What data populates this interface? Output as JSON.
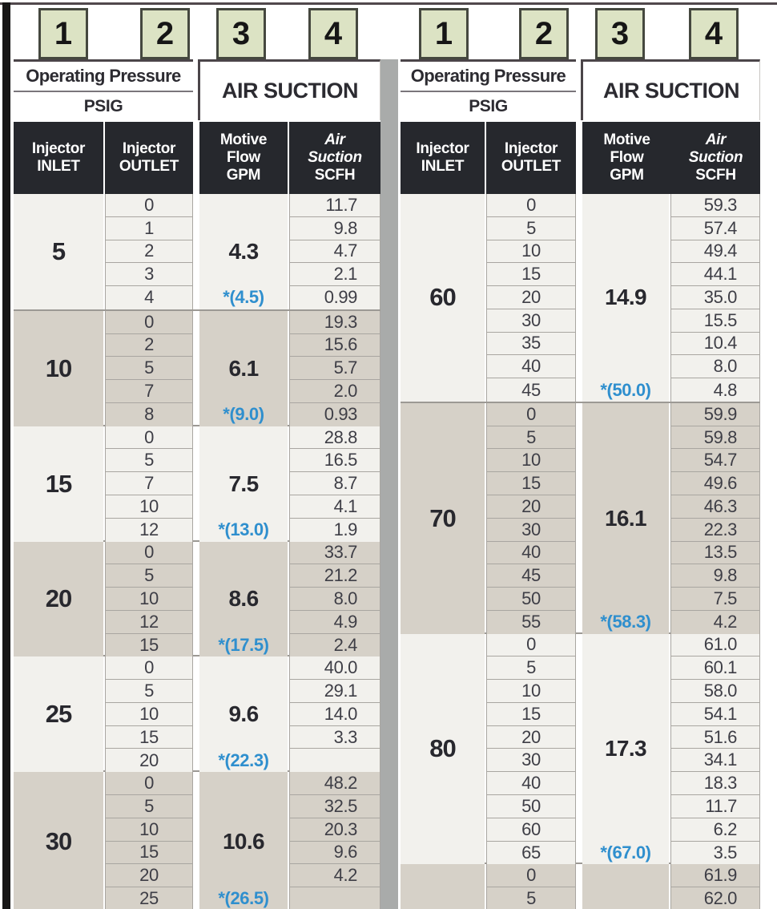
{
  "colors": {
    "badge_bg": "#dce3c4",
    "badge_border": "#45483f",
    "header_dark_bg": "#26282d",
    "header_dark_text": "#ffffff",
    "row_light_bg": "#f2f1ed",
    "row_dark_bg": "#d6d1c8",
    "max_flow_blue": "#2f8fce",
    "cell_line": "#a9a6a1",
    "group_line": "#9c9994",
    "table_divider": "#a9abaa",
    "sidebar_black": "#181717",
    "top_line": "#51484c",
    "rule_dark": "#4b4549",
    "heading_text": "#2c2b31",
    "number_text": "#3e3e46"
  },
  "tables": [
    {
      "id": "left",
      "column_labels": [
        "1",
        "2",
        "3",
        "4"
      ],
      "header": {
        "operating_pressure": "Operating Pressure",
        "psig": "PSIG",
        "air_suction": "AIR SUCTION",
        "inlet": [
          "Injector",
          "INLET"
        ],
        "outlet": [
          "Injector",
          "OUTLET"
        ],
        "motive_flow": [
          "Motive",
          "Flow",
          "GPM"
        ],
        "air_suction_col": [
          "Air",
          "Suction",
          "SCFH"
        ]
      },
      "groups": [
        {
          "inlet": "5",
          "shade": "light",
          "flow": "4.3",
          "flow_max": "*(4.5)",
          "rows": [
            [
              "0",
              "11.7"
            ],
            [
              "1",
              "9.8"
            ],
            [
              "2",
              "4.7"
            ],
            [
              "3",
              "2.1"
            ],
            [
              "4",
              "0.99"
            ]
          ]
        },
        {
          "inlet": "10",
          "shade": "dark",
          "flow": "6.1",
          "flow_max": "*(9.0)",
          "rows": [
            [
              "0",
              "19.3"
            ],
            [
              "2",
              "15.6"
            ],
            [
              "5",
              "5.7"
            ],
            [
              "7",
              "2.0"
            ],
            [
              "8",
              "0.93"
            ]
          ]
        },
        {
          "inlet": "15",
          "shade": "light",
          "flow": "7.5",
          "flow_max": "*(13.0)",
          "rows": [
            [
              "0",
              "28.8"
            ],
            [
              "5",
              "16.5"
            ],
            [
              "7",
              "8.7"
            ],
            [
              "10",
              "4.1"
            ],
            [
              "12",
              "1.9"
            ]
          ]
        },
        {
          "inlet": "20",
          "shade": "dark",
          "flow": "8.6",
          "flow_max": "*(17.5)",
          "rows": [
            [
              "0",
              "33.7"
            ],
            [
              "5",
              "21.2"
            ],
            [
              "10",
              "8.0"
            ],
            [
              "12",
              "4.9"
            ],
            [
              "15",
              "2.4"
            ]
          ]
        },
        {
          "inlet": "25",
          "shade": "light",
          "flow": "9.6",
          "flow_max": "*(22.3)",
          "rows": [
            [
              "0",
              "40.0"
            ],
            [
              "5",
              "29.1"
            ],
            [
              "10",
              "14.0"
            ],
            [
              "15",
              "3.3"
            ],
            [
              "20",
              ""
            ]
          ]
        },
        {
          "inlet": "30",
          "shade": "dark",
          "flow": "10.6",
          "flow_max": "*(26.5)",
          "rows": [
            [
              "0",
              "48.2"
            ],
            [
              "5",
              "32.5"
            ],
            [
              "10",
              "20.3"
            ],
            [
              "15",
              "9.6"
            ],
            [
              "20",
              "4.2"
            ],
            [
              "25",
              ""
            ]
          ]
        }
      ]
    },
    {
      "id": "right",
      "column_labels": [
        "1",
        "2",
        "3",
        "4"
      ],
      "header": {
        "operating_pressure": "Operating Pressure",
        "psig": "PSIG",
        "air_suction": "AIR SUCTION",
        "inlet": [
          "Injector",
          "INLET"
        ],
        "outlet": [
          "Injector",
          "OUTLET"
        ],
        "motive_flow": [
          "Motive",
          "Flow",
          "GPM"
        ],
        "air_suction_col": [
          "Air",
          "Suction",
          "SCFH"
        ]
      },
      "groups": [
        {
          "inlet": "60",
          "shade": "light",
          "flow": "14.9",
          "flow_max": "*(50.0)",
          "rows": [
            [
              "0",
              "59.3"
            ],
            [
              "5",
              "57.4"
            ],
            [
              "10",
              "49.4"
            ],
            [
              "15",
              "44.1"
            ],
            [
              "20",
              "35.0"
            ],
            [
              "30",
              "15.5"
            ],
            [
              "35",
              "10.4"
            ],
            [
              "40",
              "8.0"
            ],
            [
              "45",
              "4.8"
            ]
          ]
        },
        {
          "inlet": "70",
          "shade": "dark",
          "flow": "16.1",
          "flow_max": "*(58.3)",
          "rows": [
            [
              "0",
              "59.9"
            ],
            [
              "5",
              "59.8"
            ],
            [
              "10",
              "54.7"
            ],
            [
              "15",
              "49.6"
            ],
            [
              "20",
              "46.3"
            ],
            [
              "30",
              "22.3"
            ],
            [
              "40",
              "13.5"
            ],
            [
              "45",
              "9.8"
            ],
            [
              "50",
              "7.5"
            ],
            [
              "55",
              "4.2"
            ]
          ]
        },
        {
          "inlet": "80",
          "shade": "light",
          "flow": "17.3",
          "flow_max": "*(67.0)",
          "rows": [
            [
              "0",
              "61.0"
            ],
            [
              "5",
              "60.1"
            ],
            [
              "10",
              "58.0"
            ],
            [
              "15",
              "54.1"
            ],
            [
              "20",
              "51.6"
            ],
            [
              "30",
              "34.1"
            ],
            [
              "40",
              "18.3"
            ],
            [
              "50",
              "11.7"
            ],
            [
              "60",
              "6.2"
            ],
            [
              "65",
              "3.5"
            ]
          ]
        },
        {
          "inlet": "",
          "shade": "dark",
          "flow": "",
          "flow_max": "",
          "rows": [
            [
              "0",
              "61.9"
            ],
            [
              "5",
              "62.0"
            ]
          ]
        }
      ]
    }
  ]
}
